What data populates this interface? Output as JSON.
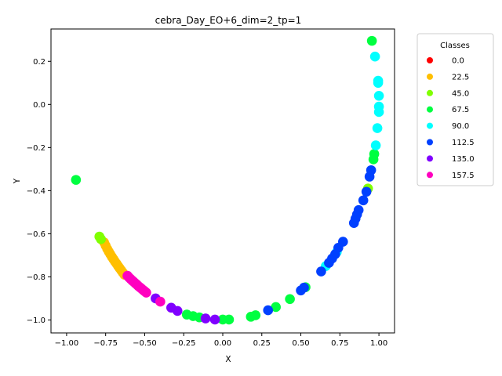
{
  "chart_data": {
    "type": "scatter",
    "title": "cebra_Day_EO+6_dim=2_tp=1",
    "xlabel": "X",
    "ylabel": "Y",
    "xlim": [
      -1.1,
      1.1
    ],
    "ylim": [
      -1.06,
      0.35
    ],
    "xticks": [
      -1.0,
      -0.75,
      -0.5,
      -0.25,
      0.0,
      0.25,
      0.5,
      0.75,
      1.0
    ],
    "xtick_labels": [
      "−1.00",
      "−0.75",
      "−0.50",
      "−0.25",
      "0.00",
      "0.25",
      "0.50",
      "0.75",
      "1.00"
    ],
    "yticks": [
      -1.0,
      -0.8,
      -0.6,
      -0.4,
      -0.2,
      0.0,
      0.2
    ],
    "ytick_labels": [
      "−1.0",
      "−0.8",
      "−0.6",
      "−0.4",
      "−0.2",
      "0.0",
      "0.2"
    ],
    "grid": false,
    "legend": {
      "title": "Classes",
      "placement": "outside-right-top",
      "entries": [
        {
          "label": "0.0",
          "color": "#ff0000"
        },
        {
          "label": "22.5",
          "color": "#ffbf00"
        },
        {
          "label": "45.0",
          "color": "#80ff00"
        },
        {
          "label": "67.5",
          "color": "#00ff40"
        },
        {
          "label": "90.0",
          "color": "#00ffff"
        },
        {
          "label": "112.5",
          "color": "#0040ff"
        },
        {
          "label": "135.0",
          "color": "#8000ff"
        },
        {
          "label": "157.5",
          "color": "#ff00bf"
        }
      ]
    },
    "series": [
      {
        "class": "22.5",
        "color": "#ffbf00",
        "points": [
          [
            -0.76,
            -0.64
          ],
          [
            -0.75,
            -0.655
          ],
          [
            -0.74,
            -0.67
          ],
          [
            -0.73,
            -0.683
          ],
          [
            -0.72,
            -0.695
          ],
          [
            -0.71,
            -0.707
          ],
          [
            -0.7,
            -0.718
          ],
          [
            -0.69,
            -0.729
          ],
          [
            -0.68,
            -0.739
          ],
          [
            -0.67,
            -0.75
          ],
          [
            -0.66,
            -0.76
          ],
          [
            -0.65,
            -0.77
          ],
          [
            -0.64,
            -0.78
          ],
          [
            -0.63,
            -0.79
          ]
        ]
      },
      {
        "class": "45.0",
        "color": "#80ff00",
        "points": [
          [
            -0.79,
            -0.613
          ],
          [
            -0.78,
            -0.625
          ],
          [
            0.93,
            -0.39
          ]
        ]
      },
      {
        "class": "67.5",
        "color": "#00ff40",
        "points": [
          [
            -0.94,
            -0.35
          ],
          [
            -0.23,
            -0.975
          ],
          [
            -0.19,
            -0.982
          ],
          [
            -0.15,
            -0.988
          ],
          [
            0.0,
            -0.998
          ],
          [
            0.04,
            -0.998
          ],
          [
            0.18,
            -0.985
          ],
          [
            0.21,
            -0.978
          ],
          [
            0.34,
            -0.94
          ],
          [
            0.43,
            -0.903
          ],
          [
            0.53,
            -0.848
          ],
          [
            0.955,
            0.295
          ],
          [
            0.97,
            -0.23
          ],
          [
            0.965,
            -0.255
          ]
        ]
      },
      {
        "class": "90.0",
        "color": "#00ffff",
        "points": [
          [
            0.975,
            0.222
          ],
          [
            0.995,
            0.11
          ],
          [
            0.995,
            0.1
          ],
          [
            1.0,
            0.04
          ],
          [
            1.0,
            -0.01
          ],
          [
            1.0,
            -0.035
          ],
          [
            0.99,
            -0.11
          ],
          [
            0.98,
            -0.19
          ],
          [
            0.66,
            -0.75
          ],
          [
            0.73,
            -0.685
          ]
        ]
      },
      {
        "class": "112.5",
        "color": "#0040ff",
        "points": [
          [
            0.29,
            -0.955
          ],
          [
            0.5,
            -0.863
          ],
          [
            0.52,
            -0.85
          ],
          [
            0.63,
            -0.775
          ],
          [
            0.68,
            -0.735
          ],
          [
            0.7,
            -0.715
          ],
          [
            0.72,
            -0.695
          ],
          [
            0.74,
            -0.665
          ],
          [
            0.77,
            -0.637
          ],
          [
            0.84,
            -0.55
          ],
          [
            0.85,
            -0.53
          ],
          [
            0.86,
            -0.51
          ],
          [
            0.87,
            -0.49
          ],
          [
            0.9,
            -0.445
          ],
          [
            0.92,
            -0.405
          ],
          [
            0.94,
            -0.335
          ],
          [
            0.95,
            -0.305
          ]
        ]
      },
      {
        "class": "135.0",
        "color": "#8000ff",
        "points": [
          [
            -0.43,
            -0.9
          ],
          [
            -0.33,
            -0.943
          ],
          [
            -0.29,
            -0.958
          ],
          [
            -0.11,
            -0.993
          ],
          [
            -0.05,
            -0.998
          ]
        ]
      },
      {
        "class": "157.5",
        "color": "#ff00bf",
        "points": [
          [
            -0.61,
            -0.795
          ],
          [
            -0.6,
            -0.803
          ],
          [
            -0.59,
            -0.81
          ],
          [
            -0.58,
            -0.817
          ],
          [
            -0.57,
            -0.823
          ],
          [
            -0.56,
            -0.83
          ],
          [
            -0.55,
            -0.836
          ],
          [
            -0.54,
            -0.843
          ],
          [
            -0.53,
            -0.849
          ],
          [
            -0.52,
            -0.855
          ],
          [
            -0.51,
            -0.861
          ],
          [
            -0.5,
            -0.867
          ],
          [
            -0.49,
            -0.873
          ],
          [
            -0.4,
            -0.915
          ]
        ]
      }
    ]
  }
}
